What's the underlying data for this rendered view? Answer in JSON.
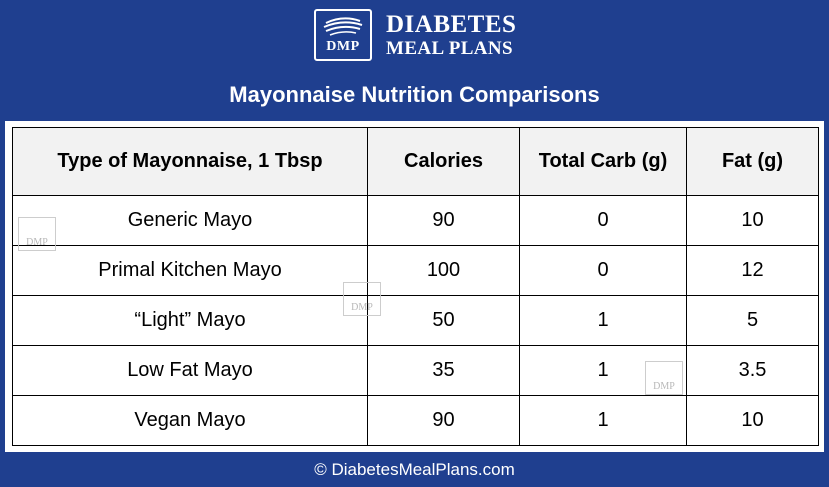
{
  "header": {
    "logo_abbr": "DMP",
    "brand_line1": "DIABETES",
    "brand_line2": "MEAL PLANS"
  },
  "title": "Mayonnaise Nutrition Comparisons",
  "table": {
    "headers": [
      "Type of Mayonnaise, 1 Tbsp",
      "Calories",
      "Total Carb (g)",
      "Fat (g)"
    ],
    "rows": [
      [
        "Generic Mayo",
        "90",
        "0",
        "10"
      ],
      [
        "Primal Kitchen Mayo",
        "100",
        "0",
        "12"
      ],
      [
        "“Light” Mayo",
        "50",
        "1",
        "5"
      ],
      [
        "Low Fat Mayo",
        "35",
        "1",
        "3.5"
      ],
      [
        "Vegan Mayo",
        "90",
        "1",
        "10"
      ]
    ]
  },
  "watermark": {
    "text": "DMP"
  },
  "footer": "© DiabetesMealPlans.com",
  "colors": {
    "background": "#1f3f8f",
    "header_row": "#f2f2f2",
    "text_light": "#ffffff"
  }
}
